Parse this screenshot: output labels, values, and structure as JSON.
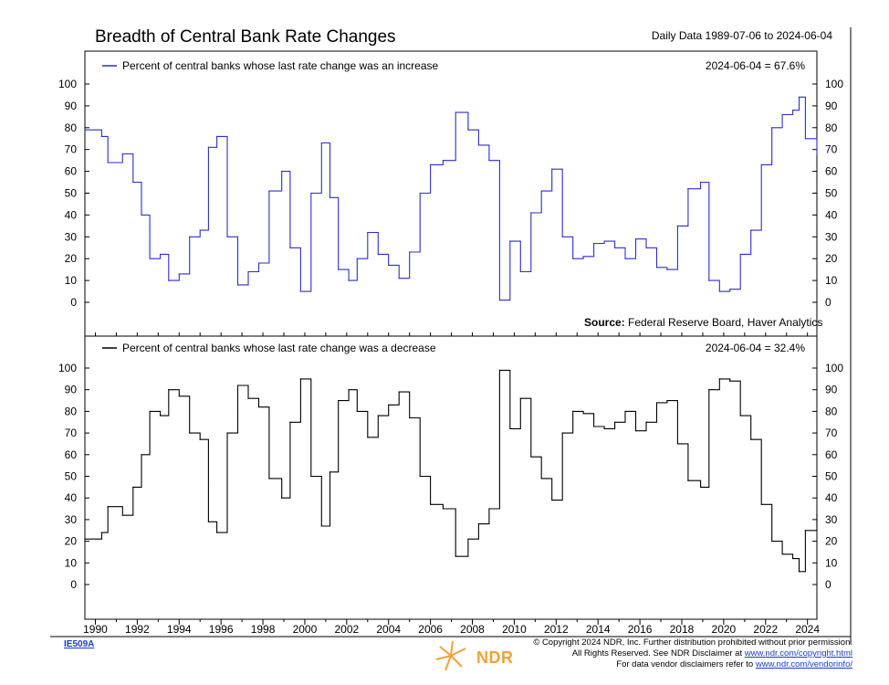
{
  "header": {
    "title": "Breadth of Central Bank Rate Changes",
    "date_range": "Daily Data 1989-07-06 to 2024-06-04"
  },
  "chart_data": [
    {
      "type": "line",
      "panel": "top",
      "legend": "Percent of central banks whose last rate change was an increase",
      "latest": "2024-06-04 = 67.6%",
      "source_label": "Source:",
      "source": "Federal Reserve Board, Haver Analytics",
      "color": "#2e2ec8",
      "ylim": [
        0,
        100
      ],
      "yticks": [
        0,
        10,
        20,
        30,
        40,
        50,
        60,
        70,
        80,
        90,
        100
      ],
      "xlim": [
        1989.5,
        2024.45
      ],
      "x": [
        1989.5,
        1990.3,
        1990.6,
        1991.3,
        1991.8,
        1992.2,
        1992.6,
        1993.1,
        1993.5,
        1994.0,
        1994.5,
        1995.0,
        1995.4,
        1995.8,
        1996.3,
        1996.8,
        1997.3,
        1997.8,
        1998.3,
        1998.9,
        1999.3,
        1999.8,
        2000.3,
        2000.8,
        2001.2,
        2001.6,
        2002.1,
        2002.5,
        2003.0,
        2003.5,
        2004.0,
        2004.5,
        2005.0,
        2005.5,
        2006.0,
        2006.6,
        2007.2,
        2007.8,
        2008.3,
        2008.8,
        2009.3,
        2009.8,
        2010.3,
        2010.8,
        2011.3,
        2011.8,
        2012.3,
        2012.8,
        2013.3,
        2013.8,
        2014.3,
        2014.8,
        2015.3,
        2015.8,
        2016.3,
        2016.8,
        2017.3,
        2017.8,
        2018.3,
        2018.9,
        2019.3,
        2019.8,
        2020.3,
        2020.8,
        2021.3,
        2021.8,
        2022.3,
        2022.8,
        2023.3,
        2023.6,
        2023.9,
        2024.45
      ],
      "values": [
        79,
        76,
        64,
        68,
        55,
        40,
        20,
        22,
        10,
        13,
        30,
        33,
        71,
        76,
        30,
        8,
        14,
        18,
        51,
        60,
        25,
        5,
        50,
        73,
        48,
        15,
        10,
        20,
        32,
        22,
        17,
        11,
        23,
        50,
        63,
        65,
        87,
        79,
        72,
        65,
        1,
        28,
        14,
        41,
        51,
        61,
        30,
        20,
        21,
        27,
        28,
        25,
        20,
        29,
        25,
        16,
        15,
        35,
        52,
        55,
        10,
        5,
        6,
        22,
        33,
        63,
        80,
        86,
        88,
        94,
        75,
        67.6
      ]
    },
    {
      "type": "line",
      "panel": "bottom",
      "legend": "Percent of central banks whose last rate change was a decrease",
      "latest": "2024-06-04 = 32.4%",
      "color": "#000000",
      "ylim": [
        0,
        100
      ],
      "yticks": [
        0,
        10,
        20,
        30,
        40,
        50,
        60,
        70,
        80,
        90,
        100
      ],
      "xlim": [
        1989.5,
        2024.45
      ],
      "x": [
        1989.5,
        1990.3,
        1990.6,
        1991.3,
        1991.8,
        1992.2,
        1992.6,
        1993.1,
        1993.5,
        1994.0,
        1994.5,
        1995.0,
        1995.4,
        1995.8,
        1996.3,
        1996.8,
        1997.3,
        1997.8,
        1998.3,
        1998.9,
        1999.3,
        1999.8,
        2000.3,
        2000.8,
        2001.2,
        2001.6,
        2002.1,
        2002.5,
        2003.0,
        2003.5,
        2004.0,
        2004.5,
        2005.0,
        2005.5,
        2006.0,
        2006.6,
        2007.2,
        2007.8,
        2008.3,
        2008.8,
        2009.3,
        2009.8,
        2010.3,
        2010.8,
        2011.3,
        2011.8,
        2012.3,
        2012.8,
        2013.3,
        2013.8,
        2014.3,
        2014.8,
        2015.3,
        2015.8,
        2016.3,
        2016.8,
        2017.3,
        2017.8,
        2018.3,
        2018.9,
        2019.3,
        2019.8,
        2020.3,
        2020.8,
        2021.3,
        2021.8,
        2022.3,
        2022.8,
        2023.3,
        2023.6,
        2023.9,
        2024.45
      ],
      "values": [
        21,
        24,
        36,
        32,
        45,
        60,
        80,
        78,
        90,
        87,
        70,
        67,
        29,
        24,
        70,
        92,
        86,
        82,
        49,
        40,
        75,
        95,
        50,
        27,
        52,
        85,
        90,
        80,
        68,
        78,
        83,
        89,
        77,
        50,
        37,
        35,
        13,
        21,
        28,
        35,
        99,
        72,
        86,
        59,
        49,
        39,
        70,
        80,
        79,
        73,
        72,
        75,
        80,
        71,
        75,
        84,
        85,
        65,
        48,
        45,
        90,
        95,
        94,
        78,
        67,
        37,
        20,
        14,
        12,
        6,
        25,
        32.4
      ]
    }
  ],
  "x_axis": {
    "tick_labels": [
      "1990",
      "1992",
      "1994",
      "1996",
      "1998",
      "2000",
      "2002",
      "2004",
      "2006",
      "2008",
      "2010",
      "2012",
      "2014",
      "2016",
      "2018",
      "2020",
      "2022",
      "2024"
    ]
  },
  "footer": {
    "chart_id": "IE509A",
    "logo_text": "NDR",
    "copyright_line1": "© Copyright 2024 NDR, Inc. Further distribution prohibited without prior permission.",
    "copyright_line2_prefix": "All Rights Reserved. See NDR Disclaimer at ",
    "copyright_line2_link": "www.ndr.com/copyright.html",
    "copyright_line3_prefix": "For data vendor disclaimers refer to ",
    "copyright_line3_link": "www.ndr.com/vendorinfo/"
  }
}
